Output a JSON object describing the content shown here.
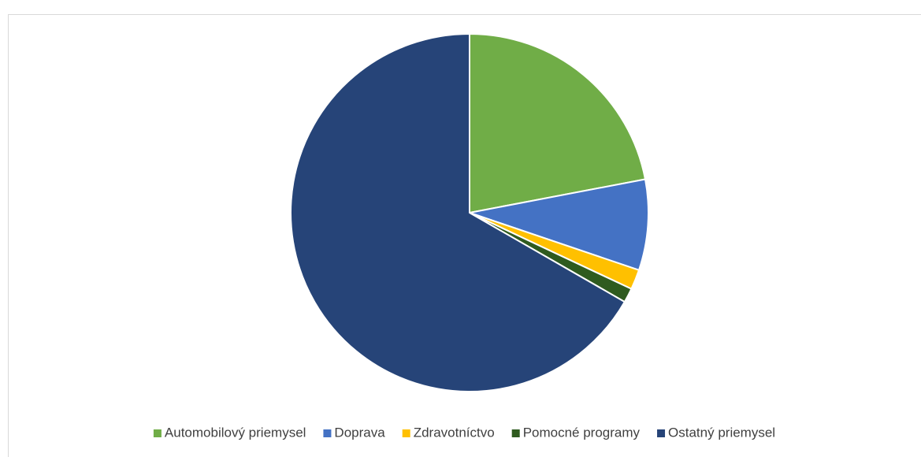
{
  "chart_data": {
    "type": "pie",
    "categories": [
      "Automobilový priemysel",
      "Doprava",
      "Zdravotníctvo",
      "Pomocné programy",
      "Ostatný priemysel"
    ],
    "values": [
      22,
      8.2,
      1.8,
      1.3,
      66.7
    ],
    "colors": [
      "#70ad47",
      "#4472c4",
      "#ffc000",
      "#2f5b1f",
      "#264478"
    ],
    "legend": "bottom"
  }
}
